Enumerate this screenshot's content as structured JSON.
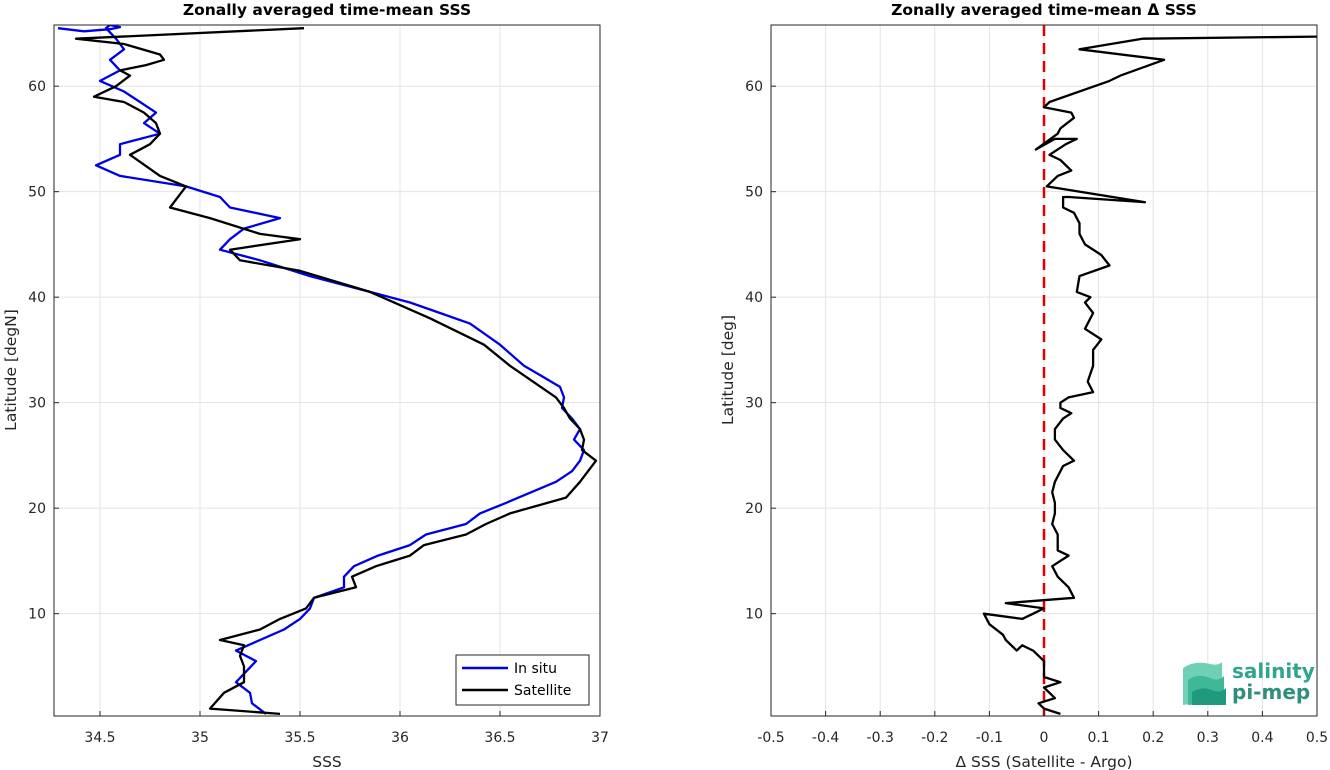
{
  "chart_data": [
    {
      "type": "line",
      "title": "Zonally averaged time-mean SSS",
      "xlabel": "SSS",
      "ylabel": "Latitude [degN]",
      "xlim": [
        34.27,
        37.0
      ],
      "ylim": [
        0.3,
        65.8
      ],
      "xticks": [
        "34.5",
        "35",
        "35.5",
        "36",
        "36.5",
        "37"
      ],
      "yticks": [
        "10",
        "20",
        "30",
        "40",
        "50",
        "60"
      ],
      "grid": true,
      "legend_placement": "bottom-right",
      "series": [
        {
          "name": "In situ",
          "color": "#0000e6",
          "x": [
            35.33,
            35.26,
            35.25,
            35.18,
            35.28,
            35.18,
            35.3,
            35.42,
            35.5,
            35.55,
            35.57,
            35.72,
            35.72,
            35.77,
            35.89,
            36.05,
            36.13,
            36.33,
            36.4,
            36.53,
            36.78,
            36.86,
            36.9,
            36.92,
            36.87,
            36.9,
            36.86,
            36.81,
            36.82,
            36.8,
            36.71,
            36.62,
            36.5,
            36.35,
            36.2,
            36.05,
            35.85,
            35.55,
            35.3,
            35.1,
            35.15,
            35.22,
            35.4,
            35.15,
            35.1,
            34.93,
            34.6,
            34.48,
            34.6,
            34.6,
            34.8,
            34.72,
            34.78,
            34.7,
            34.62,
            34.5,
            34.6,
            34.55,
            34.62,
            34.58,
            34.53,
            34.55,
            34.6,
            34.55,
            34.42,
            34.29
          ],
          "y": [
            0.5,
            1.5,
            2.5,
            3.5,
            5.5,
            6.5,
            7.5,
            8.5,
            9.5,
            10.5,
            11.5,
            12.5,
            13.5,
            14.5,
            15.5,
            16.5,
            17.5,
            18.5,
            19.5,
            20.5,
            22.5,
            23.5,
            24.5,
            25.5,
            26.5,
            27.5,
            28.5,
            29.5,
            30.5,
            31.5,
            32.5,
            33.5,
            35.5,
            37.5,
            38.5,
            39.5,
            40.5,
            42.0,
            43.5,
            44.5,
            45.5,
            46.5,
            47.5,
            48.5,
            49.5,
            50.5,
            51.5,
            52.5,
            53.5,
            54.5,
            55.5,
            56.5,
            57.5,
            58.5,
            59.5,
            60.5,
            61.5,
            62.5,
            63.5,
            64.5,
            65.5,
            65.8,
            65.6,
            65.4,
            65.2,
            65.5
          ]
        },
        {
          "name": "Satellite",
          "color": "#000000",
          "x": [
            35.4,
            35.05,
            35.12,
            35.22,
            35.22,
            35.2,
            35.22,
            35.1,
            35.3,
            35.4,
            35.53,
            35.57,
            35.78,
            35.76,
            35.88,
            36.05,
            36.12,
            36.33,
            36.43,
            36.55,
            36.83,
            36.9,
            36.98,
            36.91,
            36.92,
            36.9,
            36.85,
            36.82,
            36.78,
            36.55,
            36.42,
            36.15,
            35.85,
            35.5,
            35.2,
            35.15,
            35.5,
            35.3,
            35.05,
            34.85,
            34.93,
            34.8,
            34.65,
            34.75,
            34.8,
            34.78,
            34.72,
            34.62,
            34.47,
            34.58,
            34.65,
            34.6,
            34.73,
            34.82,
            34.8,
            34.62,
            34.38,
            35.52
          ],
          "y": [
            0.5,
            1.0,
            2.5,
            3.5,
            5.0,
            6.0,
            7.0,
            7.5,
            8.5,
            9.5,
            10.5,
            11.5,
            12.5,
            13.5,
            14.5,
            15.5,
            16.5,
            17.5,
            18.5,
            19.5,
            21.0,
            22.5,
            24.5,
            25.5,
            26.5,
            27.5,
            28.5,
            29.5,
            30.5,
            33.5,
            35.5,
            38.0,
            40.5,
            42.5,
            43.5,
            44.5,
            45.5,
            46.0,
            47.5,
            48.5,
            50.5,
            51.5,
            53.5,
            54.5,
            55.5,
            56.5,
            57.5,
            58.5,
            59.0,
            60.0,
            61.0,
            61.5,
            62.0,
            62.5,
            63.0,
            64.0,
            64.5,
            65.5
          ]
        }
      ]
    },
    {
      "type": "line",
      "title": "Zonally averaged time-mean Δ SSS",
      "xlabel": "Δ SSS (Satellite - Argo)",
      "ylabel": "Latitude [deg]",
      "xlim": [
        -0.5,
        0.5
      ],
      "ylim": [
        0.3,
        65.8
      ],
      "xticks": [
        "-0.5",
        "-0.4",
        "-0.3",
        "-0.2",
        "-0.1",
        "0",
        "0.1",
        "0.2",
        "0.3",
        "0.4",
        "0.5"
      ],
      "yticks": [
        "10",
        "20",
        "30",
        "40",
        "50",
        "60"
      ],
      "grid": true,
      "reference_line": {
        "x": 0,
        "color": "#e00000",
        "style": "dashed"
      },
      "series": [
        {
          "name": "",
          "color": "#000000",
          "x": [
            0.03,
            0.0,
            -0.01,
            0.02,
            0.0,
            0.03,
            0.0,
            0.0,
            -0.02,
            -0.04,
            -0.05,
            -0.07,
            -0.075,
            -0.1,
            -0.11,
            -0.04,
            -0.02,
            0.0,
            -0.07,
            0.055,
            0.045,
            0.025,
            0.015,
            0.045,
            0.025,
            0.025,
            0.015,
            0.02,
            0.02,
            0.015,
            0.02,
            0.03,
            0.035,
            0.055,
            0.035,
            0.02,
            0.02,
            0.035,
            0.05,
            0.03,
            0.03,
            0.045,
            0.09,
            0.08,
            0.09,
            0.09,
            0.105,
            0.075,
            0.09,
            0.075,
            0.085,
            0.06,
            0.065,
            0.12,
            0.105,
            0.075,
            0.065,
            0.065,
            0.055,
            0.035,
            0.035,
            0.035,
            0.045,
            0.185,
            0.005,
            0.025,
            0.05,
            0.03,
            0.01,
            0.04,
            0.06,
            0.02,
            -0.015,
            0.025,
            0.03,
            0.055,
            0.05,
            0.0,
            0.01,
            0.12,
            0.14,
            0.22,
            0.065,
            0.18,
            0.5
          ],
          "y": [
            0.5,
            1.0,
            1.5,
            2.0,
            3.0,
            3.5,
            4.0,
            5.5,
            6.5,
            7.0,
            6.5,
            7.5,
            8.0,
            9.0,
            10.0,
            9.5,
            10.0,
            10.5,
            11.0,
            11.5,
            12.5,
            13.5,
            14.5,
            15.5,
            16.0,
            17.5,
            18.5,
            19.5,
            20.5,
            21.5,
            22.5,
            23.5,
            24.0,
            24.5,
            25.5,
            26.5,
            27.5,
            28.5,
            29.0,
            29.5,
            30.0,
            30.5,
            31.0,
            32.0,
            33.5,
            35.0,
            36.0,
            37.0,
            38.5,
            39.5,
            40.0,
            40.5,
            42.0,
            43.0,
            44.0,
            45.0,
            46.0,
            47.0,
            48.0,
            48.5,
            49.0,
            49.5,
            49.5,
            49.0,
            50.5,
            51.5,
            52.0,
            53.0,
            53.5,
            54.5,
            55.0,
            55.0,
            54.0,
            55.5,
            56.0,
            57.0,
            57.5,
            58.0,
            58.5,
            60.5,
            61.0,
            62.5,
            63.5,
            64.5,
            64.7
          ]
        }
      ],
      "logo": {
        "line1": "salinity",
        "line2": "pi-mep"
      }
    }
  ],
  "legend": {
    "in_situ": "In situ",
    "satellite": "Satellite"
  }
}
